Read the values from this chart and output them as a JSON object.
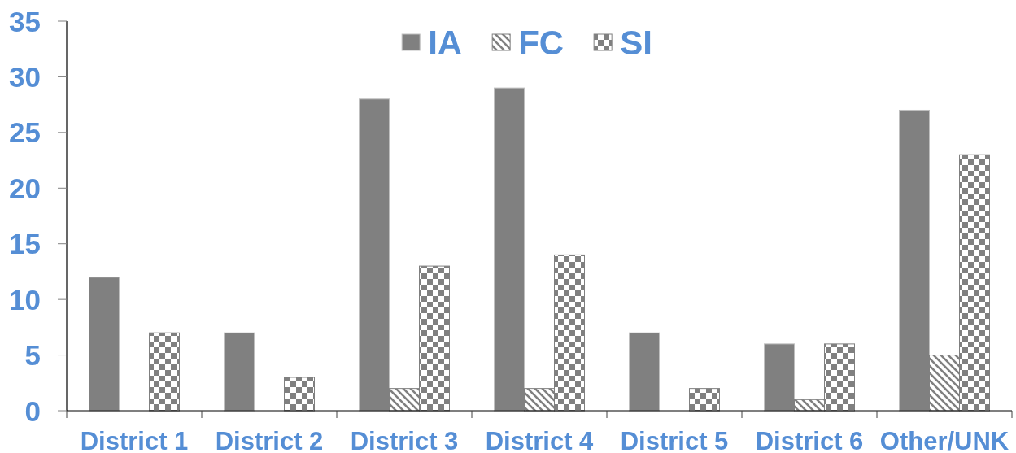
{
  "chart_data": {
    "type": "bar",
    "categories": [
      "District 1",
      "District 2",
      "District 3",
      "District 4",
      "District 5",
      "District 6",
      "Other/UNK"
    ],
    "series": [
      {
        "name": "IA",
        "color": "#808080",
        "values": [
          12,
          7,
          28,
          29,
          7,
          6,
          27
        ]
      },
      {
        "name": "FC",
        "color": "#808080",
        "values": [
          0,
          0,
          2,
          2,
          0,
          1,
          5
        ]
      },
      {
        "name": "SI",
        "color": "#808080",
        "values": [
          7,
          3,
          13,
          14,
          2,
          6,
          23
        ]
      }
    ],
    "ylim": [
      0,
      35
    ],
    "yticks": [
      0,
      5,
      10,
      15,
      20,
      25,
      30,
      35
    ],
    "legend": "top"
  }
}
